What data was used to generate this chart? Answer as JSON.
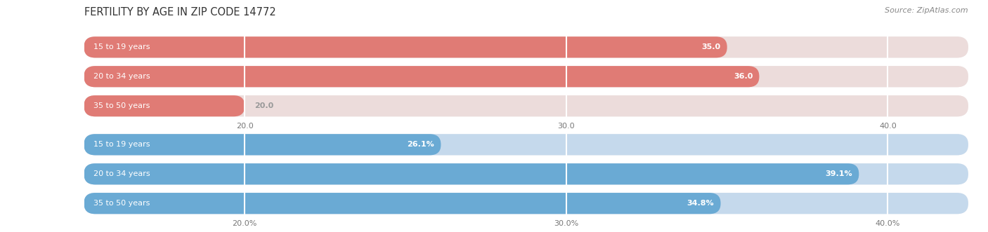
{
  "title": "FERTILITY BY AGE IN ZIP CODE 14772",
  "source": "Source: ZipAtlas.com",
  "top_bars": {
    "categories": [
      "15 to 19 years",
      "20 to 34 years",
      "35 to 50 years"
    ],
    "values": [
      35.0,
      36.0,
      20.0
    ],
    "xmin": 15.0,
    "xmax": 42.5,
    "xticks": [
      20.0,
      30.0,
      40.0
    ],
    "xtick_labels": [
      "20.0",
      "30.0",
      "40.0"
    ],
    "bar_color": "#E07B75",
    "bar_bg_color": "#ECDCDB",
    "row_bg_color": "#F2EEEE",
    "value_outside_color": "#999999",
    "has_percent": false
  },
  "bottom_bars": {
    "categories": [
      "15 to 19 years",
      "20 to 34 years",
      "35 to 50 years"
    ],
    "values": [
      26.1,
      39.1,
      34.8
    ],
    "xmin": 15.0,
    "xmax": 42.5,
    "xticks": [
      20.0,
      30.0,
      40.0
    ],
    "xtick_labels": [
      "20.0%",
      "30.0%",
      "40.0%"
    ],
    "bar_color": "#6AAAD4",
    "bar_bg_color": "#C5D9EC",
    "row_bg_color": "#EEF1F5",
    "value_outside_color": "#999999",
    "has_percent": true
  },
  "bg_color": "#FFFFFF",
  "grid_color": "#FFFFFF",
  "title_fontsize": 10.5,
  "label_fontsize": 8.0,
  "value_fontsize": 8.0,
  "tick_fontsize": 8.0,
  "source_fontsize": 8.0
}
